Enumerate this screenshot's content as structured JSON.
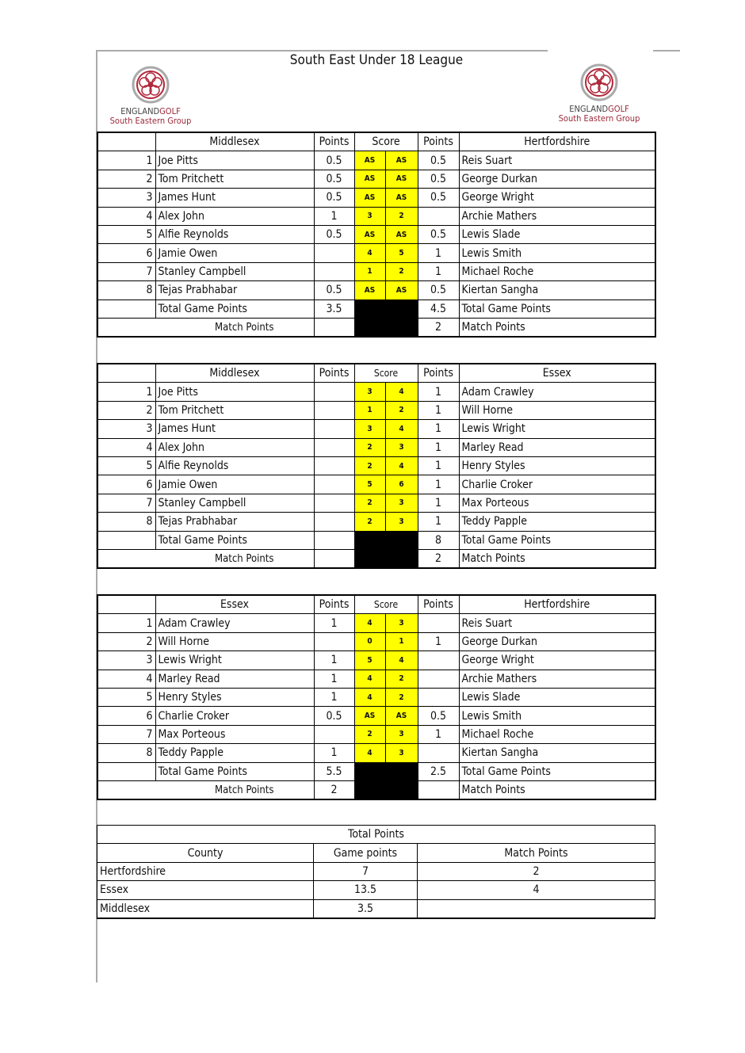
{
  "title": "South East Under 18 League",
  "logo": {
    "brand1": "ENGLAND",
    "brand2": "GOLF",
    "sub": "South Eastern Group",
    "color": "#b0283a"
  },
  "score_highlight": "#ffff00",
  "labels": {
    "points": "Points",
    "score": "Score",
    "total": "Total Game Points",
    "match": "Match Points"
  },
  "matches": [
    {
      "home": "Middlesex",
      "away": "Hertfordshire",
      "rows": [
        [
          "1",
          "Joe Pitts",
          "0.5",
          "AS",
          "AS",
          "0.5",
          "Reis Suart"
        ],
        [
          "2",
          "Tom Pritchett",
          "0.5",
          "AS",
          "AS",
          "0.5",
          "George Durkan"
        ],
        [
          "3",
          "James Hunt",
          "0.5",
          "AS",
          "AS",
          "0.5",
          "George Wright"
        ],
        [
          "4",
          "Alex John",
          "1",
          "3",
          "2",
          "",
          "Archie Mathers"
        ],
        [
          "5",
          "Alfie Reynolds",
          "0.5",
          "AS",
          "AS",
          "0.5",
          "Lewis Slade"
        ],
        [
          "6",
          "Jamie Owen",
          "",
          "4",
          "5",
          "1",
          "Lewis Smith"
        ],
        [
          "7",
          "Stanley Campbell",
          "",
          "1",
          "2",
          "1",
          "Michael Roche"
        ],
        [
          "8",
          "Tejas Prabhabar",
          "0.5",
          "AS",
          "AS",
          "0.5",
          "Kiertan Sangha"
        ]
      ],
      "home_total": "3.5",
      "away_total": "4.5",
      "home_match": "",
      "away_match": "2"
    },
    {
      "home": "Middlesex",
      "away": "Essex",
      "rows": [
        [
          "1",
          "Joe Pitts",
          "",
          "3",
          "4",
          "1",
          "Adam Crawley"
        ],
        [
          "2",
          "Tom Pritchett",
          "",
          "1",
          "2",
          "1",
          "Will Horne"
        ],
        [
          "3",
          "James Hunt",
          "",
          "3",
          "4",
          "1",
          "Lewis Wright"
        ],
        [
          "4",
          "Alex John",
          "",
          "2",
          "3",
          "1",
          "Marley Read"
        ],
        [
          "5",
          "Alfie Reynolds",
          "",
          "2",
          "4",
          "1",
          "Henry Styles"
        ],
        [
          "6",
          "Jamie Owen",
          "",
          "5",
          "6",
          "1",
          "Charlie Croker"
        ],
        [
          "7",
          "Stanley Campbell",
          "",
          "2",
          "3",
          "1",
          "Max Porteous"
        ],
        [
          "8",
          "Tejas Prabhabar",
          "",
          "2",
          "3",
          "1",
          "Teddy Papple"
        ]
      ],
      "home_total": "",
      "away_total": "8",
      "home_match": "",
      "away_match": "2"
    },
    {
      "home": "Essex",
      "away": "Hertfordshire",
      "rows": [
        [
          "1",
          "Adam Crawley",
          "1",
          "4",
          "3",
          "",
          "Reis Suart"
        ],
        [
          "2",
          "Will Horne",
          "",
          "0",
          "1",
          "1",
          "George Durkan"
        ],
        [
          "3",
          "Lewis Wright",
          "1",
          "5",
          "4",
          "",
          "George Wright"
        ],
        [
          "4",
          "Marley Read",
          "1",
          "4",
          "2",
          "",
          "Archie Mathers"
        ],
        [
          "5",
          "Henry Styles",
          "1",
          "4",
          "2",
          "",
          "Lewis Slade"
        ],
        [
          "6",
          "Charlie Croker",
          "0.5",
          "AS",
          "AS",
          "0.5",
          "Lewis Smith"
        ],
        [
          "7",
          "Max Porteous",
          "",
          "2",
          "3",
          "1",
          "Michael Roche"
        ],
        [
          "8",
          "Teddy Papple",
          "1",
          "4",
          "3",
          "",
          "Kiertan Sangha"
        ]
      ],
      "home_total": "5.5",
      "away_total": "2.5",
      "home_match": "2",
      "away_match": ""
    }
  ],
  "totals": {
    "title": "Total Points",
    "headers": [
      "County",
      "Game points",
      "Match Points"
    ],
    "rows": [
      [
        "Hertfordshire",
        "7",
        "2"
      ],
      [
        "Essex",
        "13.5",
        "4"
      ],
      [
        "Middlesex",
        "3.5",
        ""
      ]
    ]
  }
}
